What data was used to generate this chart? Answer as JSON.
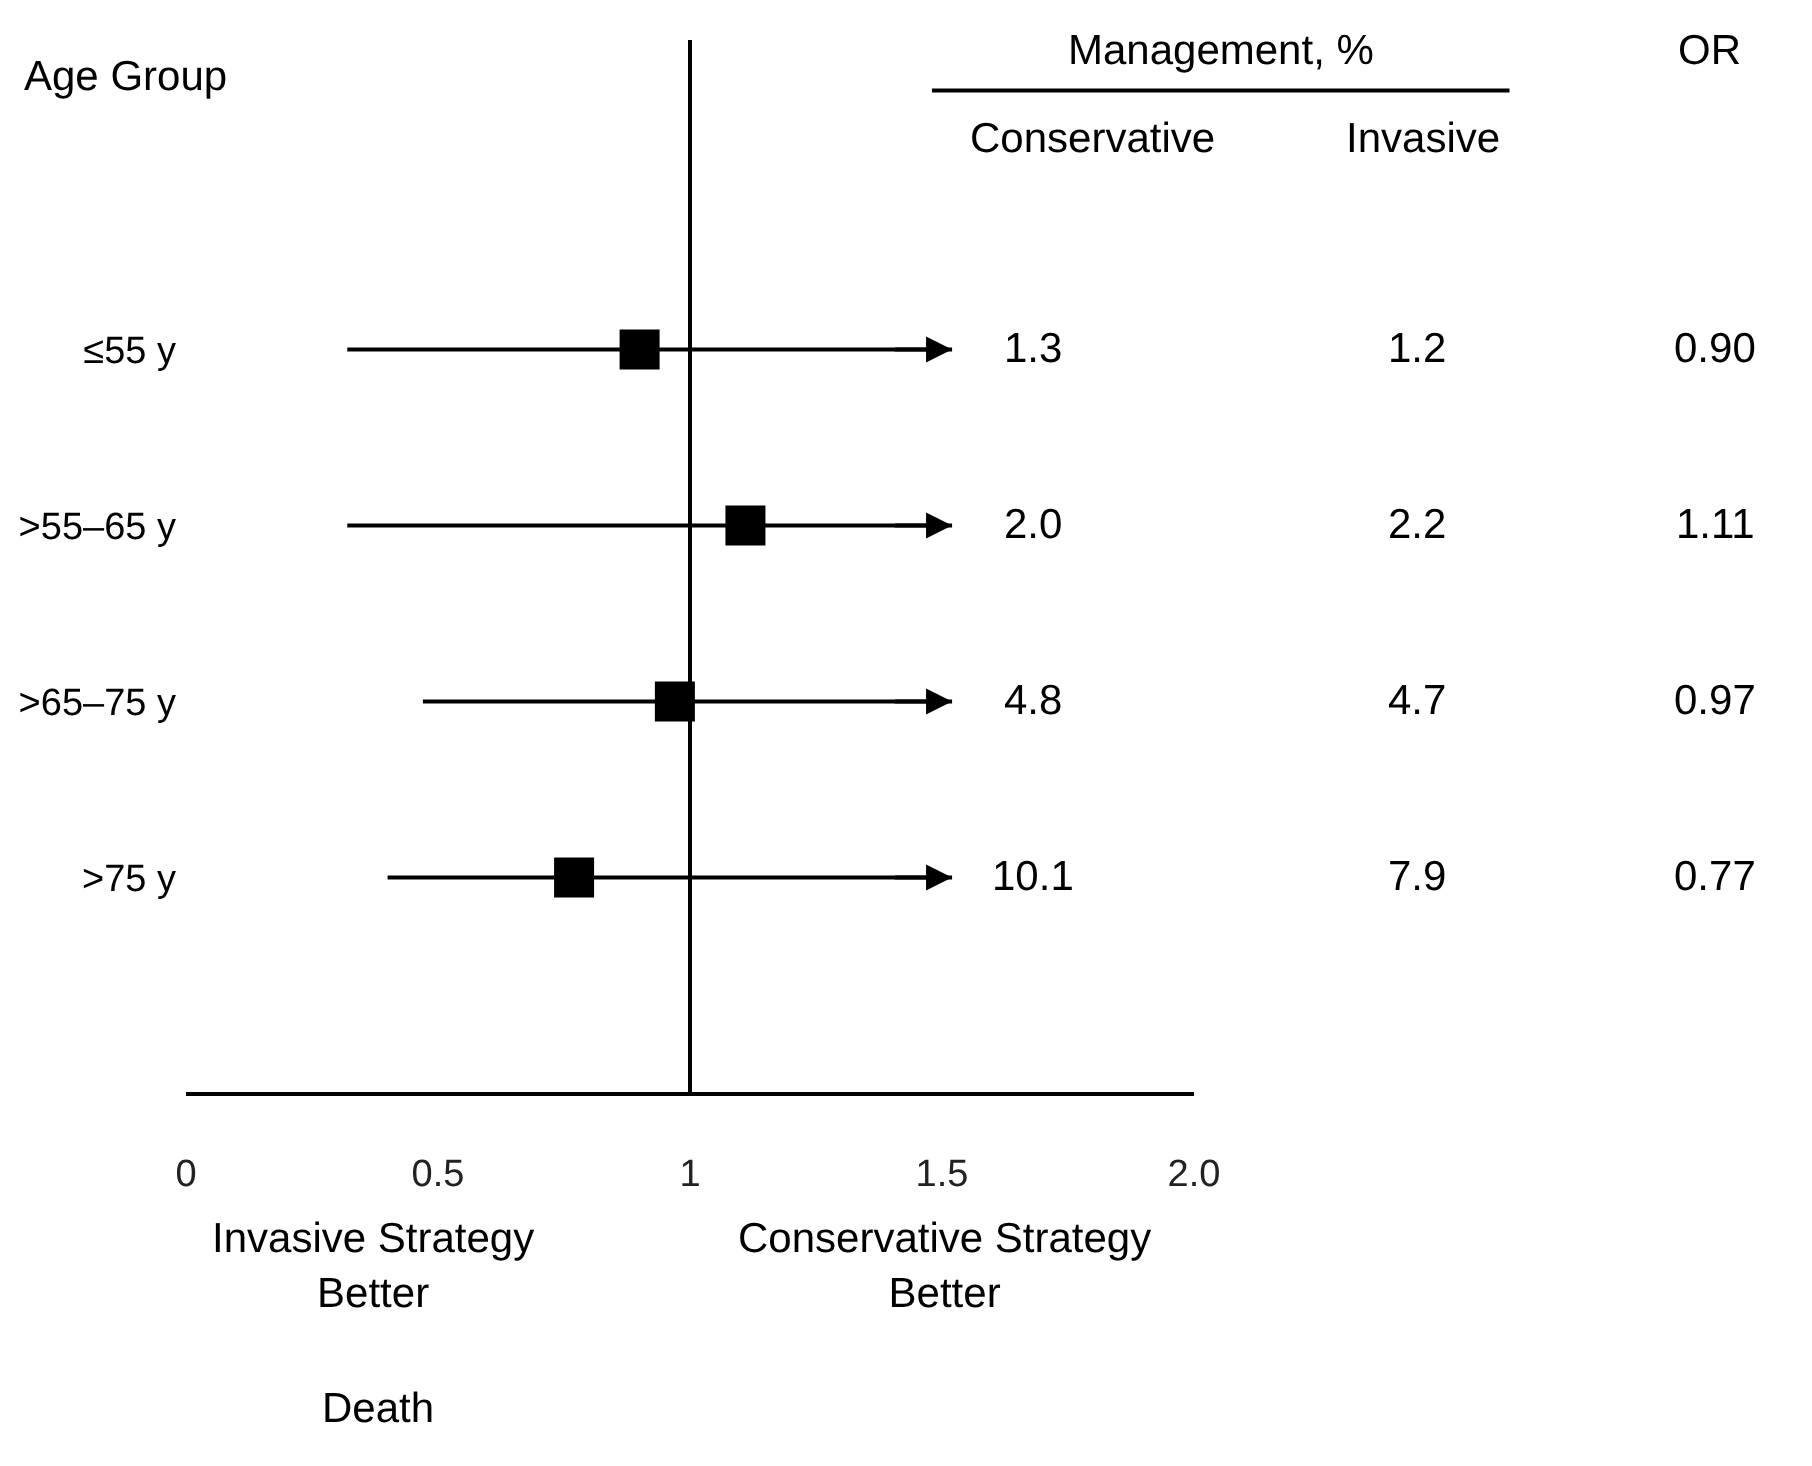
{
  "chart_data": {
    "type": "scatter",
    "orientation": "horizontal",
    "xlabel": "Death",
    "ylabel": "Age Group",
    "categories": [
      "≤55 y",
      ">55–65 y",
      ">65–75 y",
      ">75 y"
    ],
    "values": [
      0.9,
      1.11,
      0.97,
      0.77
    ],
    "errors": [
      [
        0.32,
        1.52
      ],
      [
        0.32,
        1.52
      ],
      [
        0.47,
        1.52
      ],
      [
        0.4,
        1.52
      ]
    ],
    "color": "#000000",
    "marker": "square",
    "grid": false,
    "xlim": [
      0,
      2
    ],
    "xticks": [
      0,
      0.5,
      1,
      1.5,
      {
        "value": 2,
        "label": "2.0"
      }
    ],
    "ref_lines": [
      {
        "axis": "x",
        "value": 1,
        "color": "#000000"
      }
    ],
    "annotations": [
      "Management, %",
      "Conservative",
      "Invasive",
      "OR",
      "Invasive Strategy\nBetter",
      "Conservative Strategy\nBetter",
      "1.3",
      "1.2",
      "0.90",
      "2.0",
      "2.2",
      "1.11",
      "4.8",
      "4.7",
      "0.97",
      "10.1",
      "7.9",
      "0.77"
    ]
  }
}
